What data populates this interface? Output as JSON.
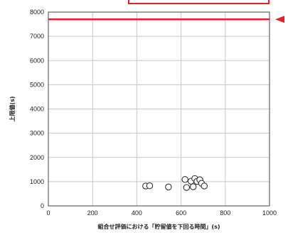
{
  "chart_data": {
    "type": "scatter",
    "xlabel": "組合せ評価における「貯留値を下回る時間」(s)",
    "ylabel": "上限値(s)",
    "xlim": [
      0,
      1000
    ],
    "ylim": [
      0,
      8000
    ],
    "xticks": [
      0,
      200,
      400,
      600,
      800,
      1000
    ],
    "yticks": [
      0,
      1000,
      2000,
      3000,
      4000,
      5000,
      6000,
      7000,
      8000
    ],
    "grid": true,
    "marker": "open-circle",
    "series": [
      {
        "x": [
          440,
          458,
          543,
          618,
          625,
          645,
          655,
          662,
          672,
          685,
          693,
          705
        ],
        "y": [
          820,
          830,
          780,
          1090,
          760,
          1020,
          790,
          1130,
          1010,
          1080,
          930,
          820
        ]
      }
    ],
    "reference_line": {
      "y": 7700,
      "color": "#e8202a"
    },
    "annotation_arrow": {
      "color": "#e8202a",
      "direction": "left"
    },
    "annotation_box": {
      "color": "#e8202a"
    }
  }
}
